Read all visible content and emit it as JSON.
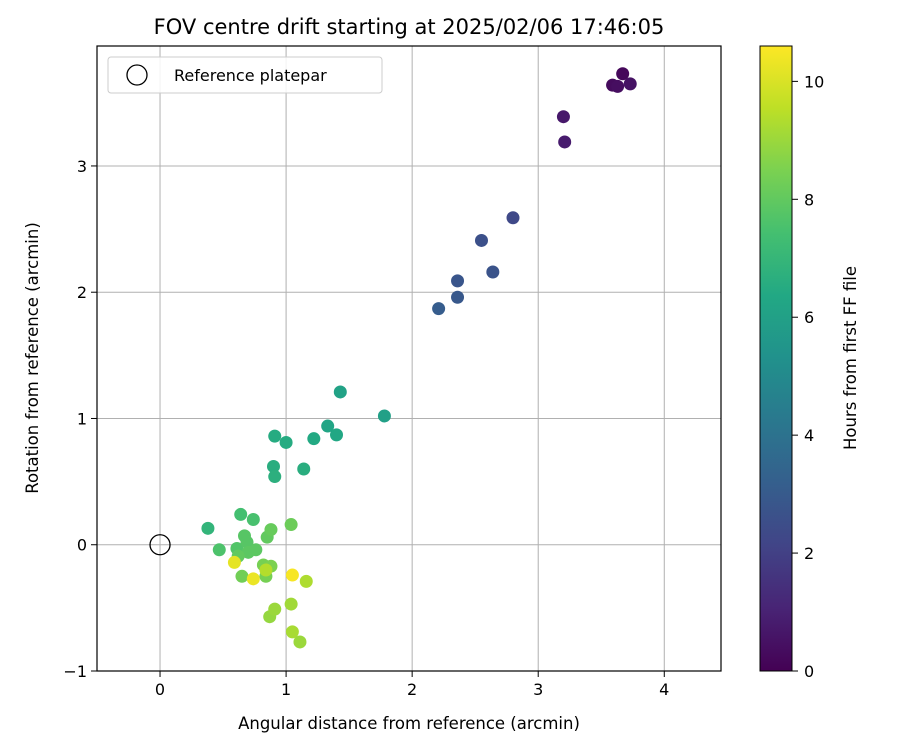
{
  "chart_data": {
    "type": "scatter",
    "title": "FOV centre drift starting at 2025/02/06 17:46:05",
    "xlabel": "Angular distance from reference (arcmin)",
    "ylabel": "Rotation from reference (arcmin)",
    "xlim": [
      -0.5,
      4.45
    ],
    "ylim": [
      -1.0,
      3.95
    ],
    "xticks": [
      0,
      1,
      2,
      3,
      4
    ],
    "yticks": [
      -1,
      0,
      1,
      2,
      3
    ],
    "grid": true,
    "legend": {
      "location": "upper left",
      "entries": [
        "Reference platepar"
      ]
    },
    "reference_point": {
      "label": "Reference platepar",
      "x": 0.0,
      "y": 0.0
    },
    "colorbar": {
      "label": "Hours from first FF file",
      "colormap": "viridis",
      "range": [
        0,
        10.6
      ],
      "ticks": [
        0,
        2,
        4,
        6,
        8,
        10
      ]
    },
    "points": [
      {
        "x": 3.67,
        "y": 3.73,
        "hours": 0.2
      },
      {
        "x": 3.59,
        "y": 3.64,
        "hours": 0.3
      },
      {
        "x": 3.63,
        "y": 3.63,
        "hours": 0.4
      },
      {
        "x": 3.73,
        "y": 3.65,
        "hours": 0.5
      },
      {
        "x": 3.2,
        "y": 3.39,
        "hours": 0.7
      },
      {
        "x": 3.21,
        "y": 3.19,
        "hours": 0.8
      },
      {
        "x": 2.8,
        "y": 2.59,
        "hours": 2.3
      },
      {
        "x": 2.55,
        "y": 2.41,
        "hours": 2.6
      },
      {
        "x": 2.64,
        "y": 2.16,
        "hours": 2.7
      },
      {
        "x": 2.36,
        "y": 2.09,
        "hours": 2.8
      },
      {
        "x": 2.36,
        "y": 1.96,
        "hours": 2.9
      },
      {
        "x": 2.21,
        "y": 1.87,
        "hours": 3.1
      },
      {
        "x": 1.78,
        "y": 1.02,
        "hours": 6.0
      },
      {
        "x": 1.43,
        "y": 1.21,
        "hours": 6.1
      },
      {
        "x": 1.33,
        "y": 0.94,
        "hours": 6.2
      },
      {
        "x": 1.4,
        "y": 0.87,
        "hours": 6.3
      },
      {
        "x": 1.22,
        "y": 0.84,
        "hours": 6.4
      },
      {
        "x": 0.91,
        "y": 0.86,
        "hours": 6.5
      },
      {
        "x": 1.0,
        "y": 0.81,
        "hours": 6.5
      },
      {
        "x": 1.14,
        "y": 0.6,
        "hours": 6.6
      },
      {
        "x": 0.9,
        "y": 0.62,
        "hours": 6.6
      },
      {
        "x": 0.91,
        "y": 0.54,
        "hours": 6.7
      },
      {
        "x": 0.38,
        "y": 0.13,
        "hours": 6.9
      },
      {
        "x": 0.64,
        "y": 0.24,
        "hours": 7.4
      },
      {
        "x": 0.74,
        "y": 0.2,
        "hours": 7.5
      },
      {
        "x": 0.47,
        "y": -0.04,
        "hours": 7.6
      },
      {
        "x": 0.61,
        "y": -0.03,
        "hours": 7.7
      },
      {
        "x": 0.67,
        "y": 0.07,
        "hours": 7.8
      },
      {
        "x": 0.69,
        "y": 0.02,
        "hours": 7.8
      },
      {
        "x": 0.7,
        "y": -0.06,
        "hours": 7.9
      },
      {
        "x": 0.76,
        "y": -0.04,
        "hours": 7.9
      },
      {
        "x": 0.85,
        "y": 0.06,
        "hours": 8.0
      },
      {
        "x": 0.88,
        "y": 0.12,
        "hours": 8.1
      },
      {
        "x": 1.04,
        "y": 0.16,
        "hours": 8.2
      },
      {
        "x": 0.62,
        "y": -0.09,
        "hours": 8.0
      },
      {
        "x": 0.65,
        "y": -0.25,
        "hours": 8.3
      },
      {
        "x": 0.82,
        "y": -0.16,
        "hours": 8.4
      },
      {
        "x": 0.84,
        "y": -0.25,
        "hours": 8.4
      },
      {
        "x": 0.88,
        "y": -0.17,
        "hours": 8.5
      },
      {
        "x": 0.87,
        "y": -0.57,
        "hours": 8.9
      },
      {
        "x": 0.91,
        "y": -0.51,
        "hours": 9.0
      },
      {
        "x": 1.11,
        "y": -0.77,
        "hours": 9.0
      },
      {
        "x": 1.04,
        "y": -0.47,
        "hours": 9.1
      },
      {
        "x": 1.05,
        "y": -0.69,
        "hours": 9.2
      },
      {
        "x": 1.16,
        "y": -0.29,
        "hours": 9.3
      },
      {
        "x": 0.84,
        "y": -0.2,
        "hours": 9.4
      },
      {
        "x": 0.59,
        "y": -0.14,
        "hours": 10.2
      },
      {
        "x": 0.74,
        "y": -0.27,
        "hours": 10.3
      },
      {
        "x": 1.05,
        "y": -0.24,
        "hours": 10.5
      }
    ]
  }
}
